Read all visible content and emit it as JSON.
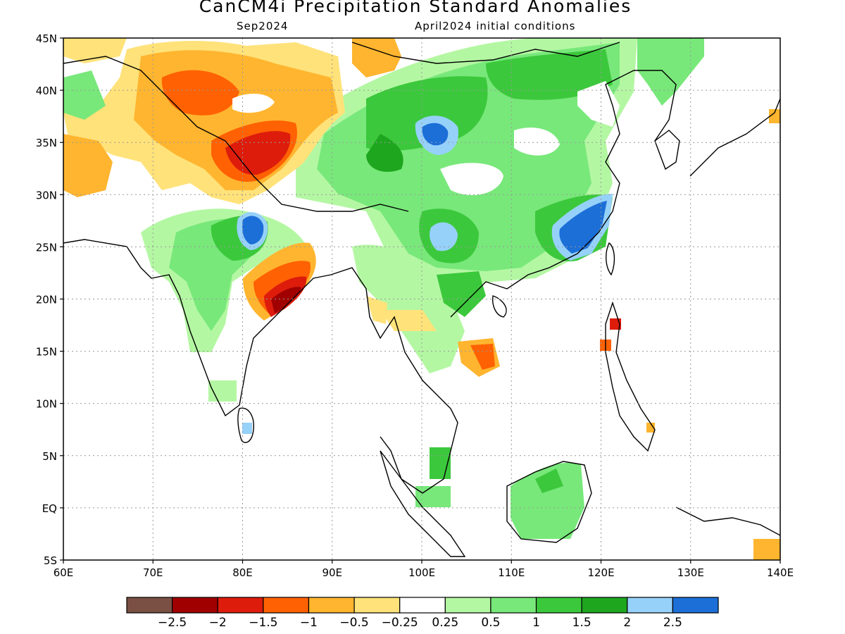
{
  "header": {
    "title": "CanCM4i Precipitation Standard Anomalies",
    "valid_month": "Sep2024",
    "init": "April2024 initial conditions"
  },
  "map": {
    "lon_ticks": [
      "60E",
      "70E",
      "80E",
      "90E",
      "100E",
      "110E",
      "120E",
      "130E",
      "140E"
    ],
    "lat_ticks": [
      "45N",
      "40N",
      "35N",
      "30N",
      "25N",
      "20N",
      "15N",
      "10N",
      "5N",
      "EQ",
      "5S"
    ],
    "lon_range": [
      60,
      140
    ],
    "lat_range": [
      -5,
      45
    ],
    "grid": "dotted"
  },
  "colorbar": {
    "labels": [
      "-2.5",
      "-2",
      "-1.5",
      "-1",
      "-0.5",
      "-0.25",
      "0.25",
      "0.5",
      "1",
      "1.5",
      "2",
      "2.5"
    ],
    "colors": [
      "#7a5044",
      "#a00000",
      "#dd1c0c",
      "#ff6103",
      "#ffb52f",
      "#ffe27a",
      "#ffffff",
      "#b4f7a3",
      "#78e87a",
      "#3cc83c",
      "#1fa61f",
      "#96d1fa",
      "#1c6fd7"
    ]
  },
  "anomaly_regions": [
    {
      "name": "northern-china-green-band",
      "value": 1.0
    },
    {
      "name": "south-china-green",
      "value": 1.0
    },
    {
      "name": "tibet-blue-center",
      "value": 2.5
    },
    {
      "name": "yunnan-blue-center",
      "value": 2.0
    },
    {
      "name": "southeast-china-blue",
      "value": 2.5
    },
    {
      "name": "nepal-blue-center",
      "value": 2.5
    },
    {
      "name": "pakistan-orange",
      "value": -1.0
    },
    {
      "name": "kashmir-red",
      "value": -1.5
    },
    {
      "name": "east-india-red",
      "value": -2.0
    },
    {
      "name": "central-asia-orange",
      "value": -1.0
    },
    {
      "name": "western-india-green",
      "value": 1.0
    },
    {
      "name": "borneo-green",
      "value": 1.0
    },
    {
      "name": "luzon-red",
      "value": -1.5
    },
    {
      "name": "indochina-orange",
      "value": -1.0
    }
  ]
}
